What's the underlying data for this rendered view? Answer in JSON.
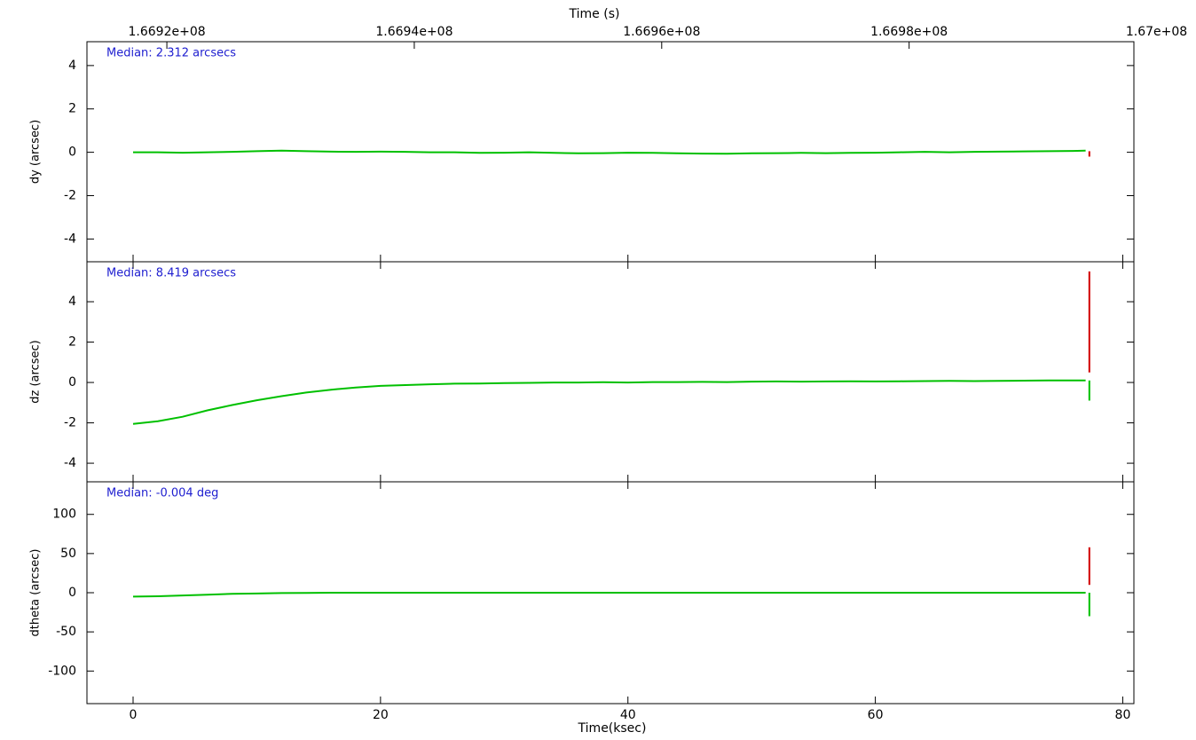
{
  "chart_data": [
    {
      "type": "line",
      "x2label": "Time (s)",
      "x2lim": [
        166913540,
        166998170
      ],
      "x2ticks": [
        {
          "value": 166920000,
          "label": "1.6692e+08"
        },
        {
          "value": 166940000,
          "label": "1.6694e+08"
        },
        {
          "value": 166960000,
          "label": "1.6696e+08"
        },
        {
          "value": 166980000,
          "label": "1.6698e+08"
        },
        {
          "value": 167000000,
          "label": "1.67e+08"
        }
      ],
      "ylabel": "dy (arcsec)",
      "annotation": "Median: 2.312 arcsecs",
      "ylim": [
        -5.05,
        5.1
      ],
      "yticks": [
        -4,
        -2,
        0,
        2,
        4
      ],
      "series": [
        {
          "color": "#00c000",
          "x": [
            0,
            2,
            4,
            6,
            8,
            10,
            12,
            14,
            16,
            18,
            20,
            22,
            24,
            26,
            28,
            30,
            32,
            34,
            36,
            38,
            40,
            42,
            44,
            46,
            48,
            50,
            52,
            54,
            56,
            58,
            60,
            62,
            64,
            66,
            68,
            70,
            72,
            74,
            76,
            77
          ],
          "values": [
            0,
            0,
            -0.02,
            0,
            0.02,
            0.05,
            0.08,
            0.05,
            0.03,
            0.02,
            0.03,
            0.02,
            0,
            0,
            -0.03,
            -0.02,
            0,
            -0.03,
            -0.05,
            -0.04,
            -0.02,
            -0.03,
            -0.05,
            -0.06,
            -0.07,
            -0.05,
            -0.04,
            -0.03,
            -0.04,
            -0.03,
            -0.02,
            0,
            0.02,
            0,
            0.02,
            0.03,
            0.04,
            0.05,
            0.06,
            0.08
          ]
        },
        {
          "color": "#d00000",
          "x": [
            77.3,
            77.3
          ],
          "values": [
            0.05,
            -0.2
          ]
        }
      ]
    },
    {
      "type": "line",
      "ylabel": "dz (arcsec)",
      "annotation": "Median: 8.419 arcsecs",
      "ylim": [
        -4.92,
        5.98
      ],
      "yticks": [
        -4,
        -2,
        0,
        2,
        4
      ],
      "series": [
        {
          "color": "#00c000",
          "x": [
            0,
            2,
            4,
            6,
            8,
            10,
            12,
            14,
            16,
            18,
            20,
            22,
            24,
            26,
            28,
            30,
            32,
            34,
            36,
            38,
            40,
            42,
            44,
            46,
            48,
            50,
            52,
            54,
            56,
            58,
            60,
            62,
            64,
            66,
            68,
            70,
            72,
            74,
            76,
            77
          ],
          "values": [
            -2.05,
            -1.92,
            -1.7,
            -1.38,
            -1.12,
            -0.88,
            -0.68,
            -0.5,
            -0.36,
            -0.25,
            -0.17,
            -0.13,
            -0.09,
            -0.06,
            -0.05,
            -0.03,
            -0.02,
            0,
            0,
            0.01,
            0,
            0.02,
            0.02,
            0.03,
            0.02,
            0.04,
            0.05,
            0.04,
            0.05,
            0.06,
            0.05,
            0.06,
            0.07,
            0.08,
            0.07,
            0.08,
            0.09,
            0.1,
            0.1,
            0.1
          ]
        },
        {
          "color": "#00c000",
          "x": [
            77.3,
            77.3
          ],
          "values": [
            0.1,
            -0.9
          ]
        },
        {
          "color": "#d00000",
          "x": [
            77.3,
            77.3
          ],
          "values": [
            0.5,
            5.5
          ]
        }
      ]
    },
    {
      "type": "line",
      "ylabel": "dtheta (arcsec)",
      "annotation": "Median: -0.004 deg",
      "ylim": [
        -141.6,
        141.6
      ],
      "yticks": [
        -100,
        -50,
        0,
        50,
        100
      ],
      "xlabel": "Time(ksec)",
      "xlim": [
        -3.73,
        80.9
      ],
      "xticks": [
        0,
        20,
        40,
        60,
        80
      ],
      "series": [
        {
          "color": "#00c000",
          "x": [
            0,
            2,
            4,
            6,
            8,
            10,
            12,
            14,
            16,
            18,
            20,
            22,
            24,
            26,
            28,
            30,
            32,
            34,
            36,
            38,
            40,
            42,
            44,
            46,
            48,
            50,
            52,
            54,
            56,
            58,
            60,
            62,
            64,
            66,
            68,
            70,
            72,
            74,
            76,
            77
          ],
          "values": [
            -5,
            -4.5,
            -3.5,
            -2.5,
            -1.5,
            -1,
            -0.5,
            -0.3,
            0,
            0,
            0,
            0,
            0,
            0,
            0,
            0,
            0,
            0,
            0,
            0,
            0,
            0,
            0,
            0,
            0,
            0,
            0,
            0,
            0,
            0,
            0,
            0,
            0,
            0,
            0,
            0,
            0,
            0,
            0,
            0
          ]
        },
        {
          "color": "#00c000",
          "x": [
            77.3,
            77.3
          ],
          "values": [
            0,
            -30
          ]
        },
        {
          "color": "#d00000",
          "x": [
            77.3,
            77.3
          ],
          "values": [
            10,
            58
          ]
        }
      ]
    }
  ]
}
